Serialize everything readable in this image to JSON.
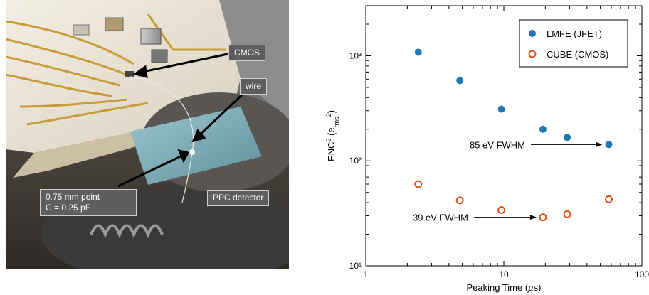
{
  "photo": {
    "callouts": {
      "cmos": "CMOS",
      "wire": "wire",
      "point_line1": "0.75 mm  point",
      "point_line2": "C = 0.25 pF",
      "ppc": "PPC detector"
    }
  },
  "chart_data": {
    "type": "scatter",
    "xscale": "log",
    "yscale": "log",
    "xlim": [
      1,
      100
    ],
    "ylim": [
      10,
      3000
    ],
    "xlabel": "Peaking Time (µs)",
    "ylabel": "ENC² (e²rms)",
    "xticks": [
      1,
      10,
      100
    ],
    "xtick_labels": [
      "1",
      "10",
      "100"
    ],
    "yticks": [
      10,
      100,
      1000
    ],
    "ytick_labels": [
      "10¹",
      "10²",
      "10³"
    ],
    "legend_position": "top-right",
    "series": [
      {
        "name": "LMFE (JFET)",
        "marker": "filled-circle",
        "color": "#1f77b4",
        "x": [
          2.4,
          4.8,
          9.6,
          19.2,
          28.8,
          57.6
        ],
        "y": [
          1080,
          580,
          310,
          200,
          167,
          143
        ]
      },
      {
        "name": "CUBE (CMOS)",
        "marker": "open-circle",
        "color": "#d95319",
        "x": [
          2.4,
          4.8,
          9.6,
          19.2,
          28.8,
          57.6
        ],
        "y": [
          60,
          42,
          34,
          29,
          31,
          43
        ]
      }
    ],
    "annotations": [
      {
        "text": "85 eV FWHM",
        "arrow_to_series": 0,
        "arrow_to_index": 5
      },
      {
        "text": "39 eV FWHM",
        "arrow_to_series": 1,
        "arrow_to_index": 3
      }
    ]
  }
}
